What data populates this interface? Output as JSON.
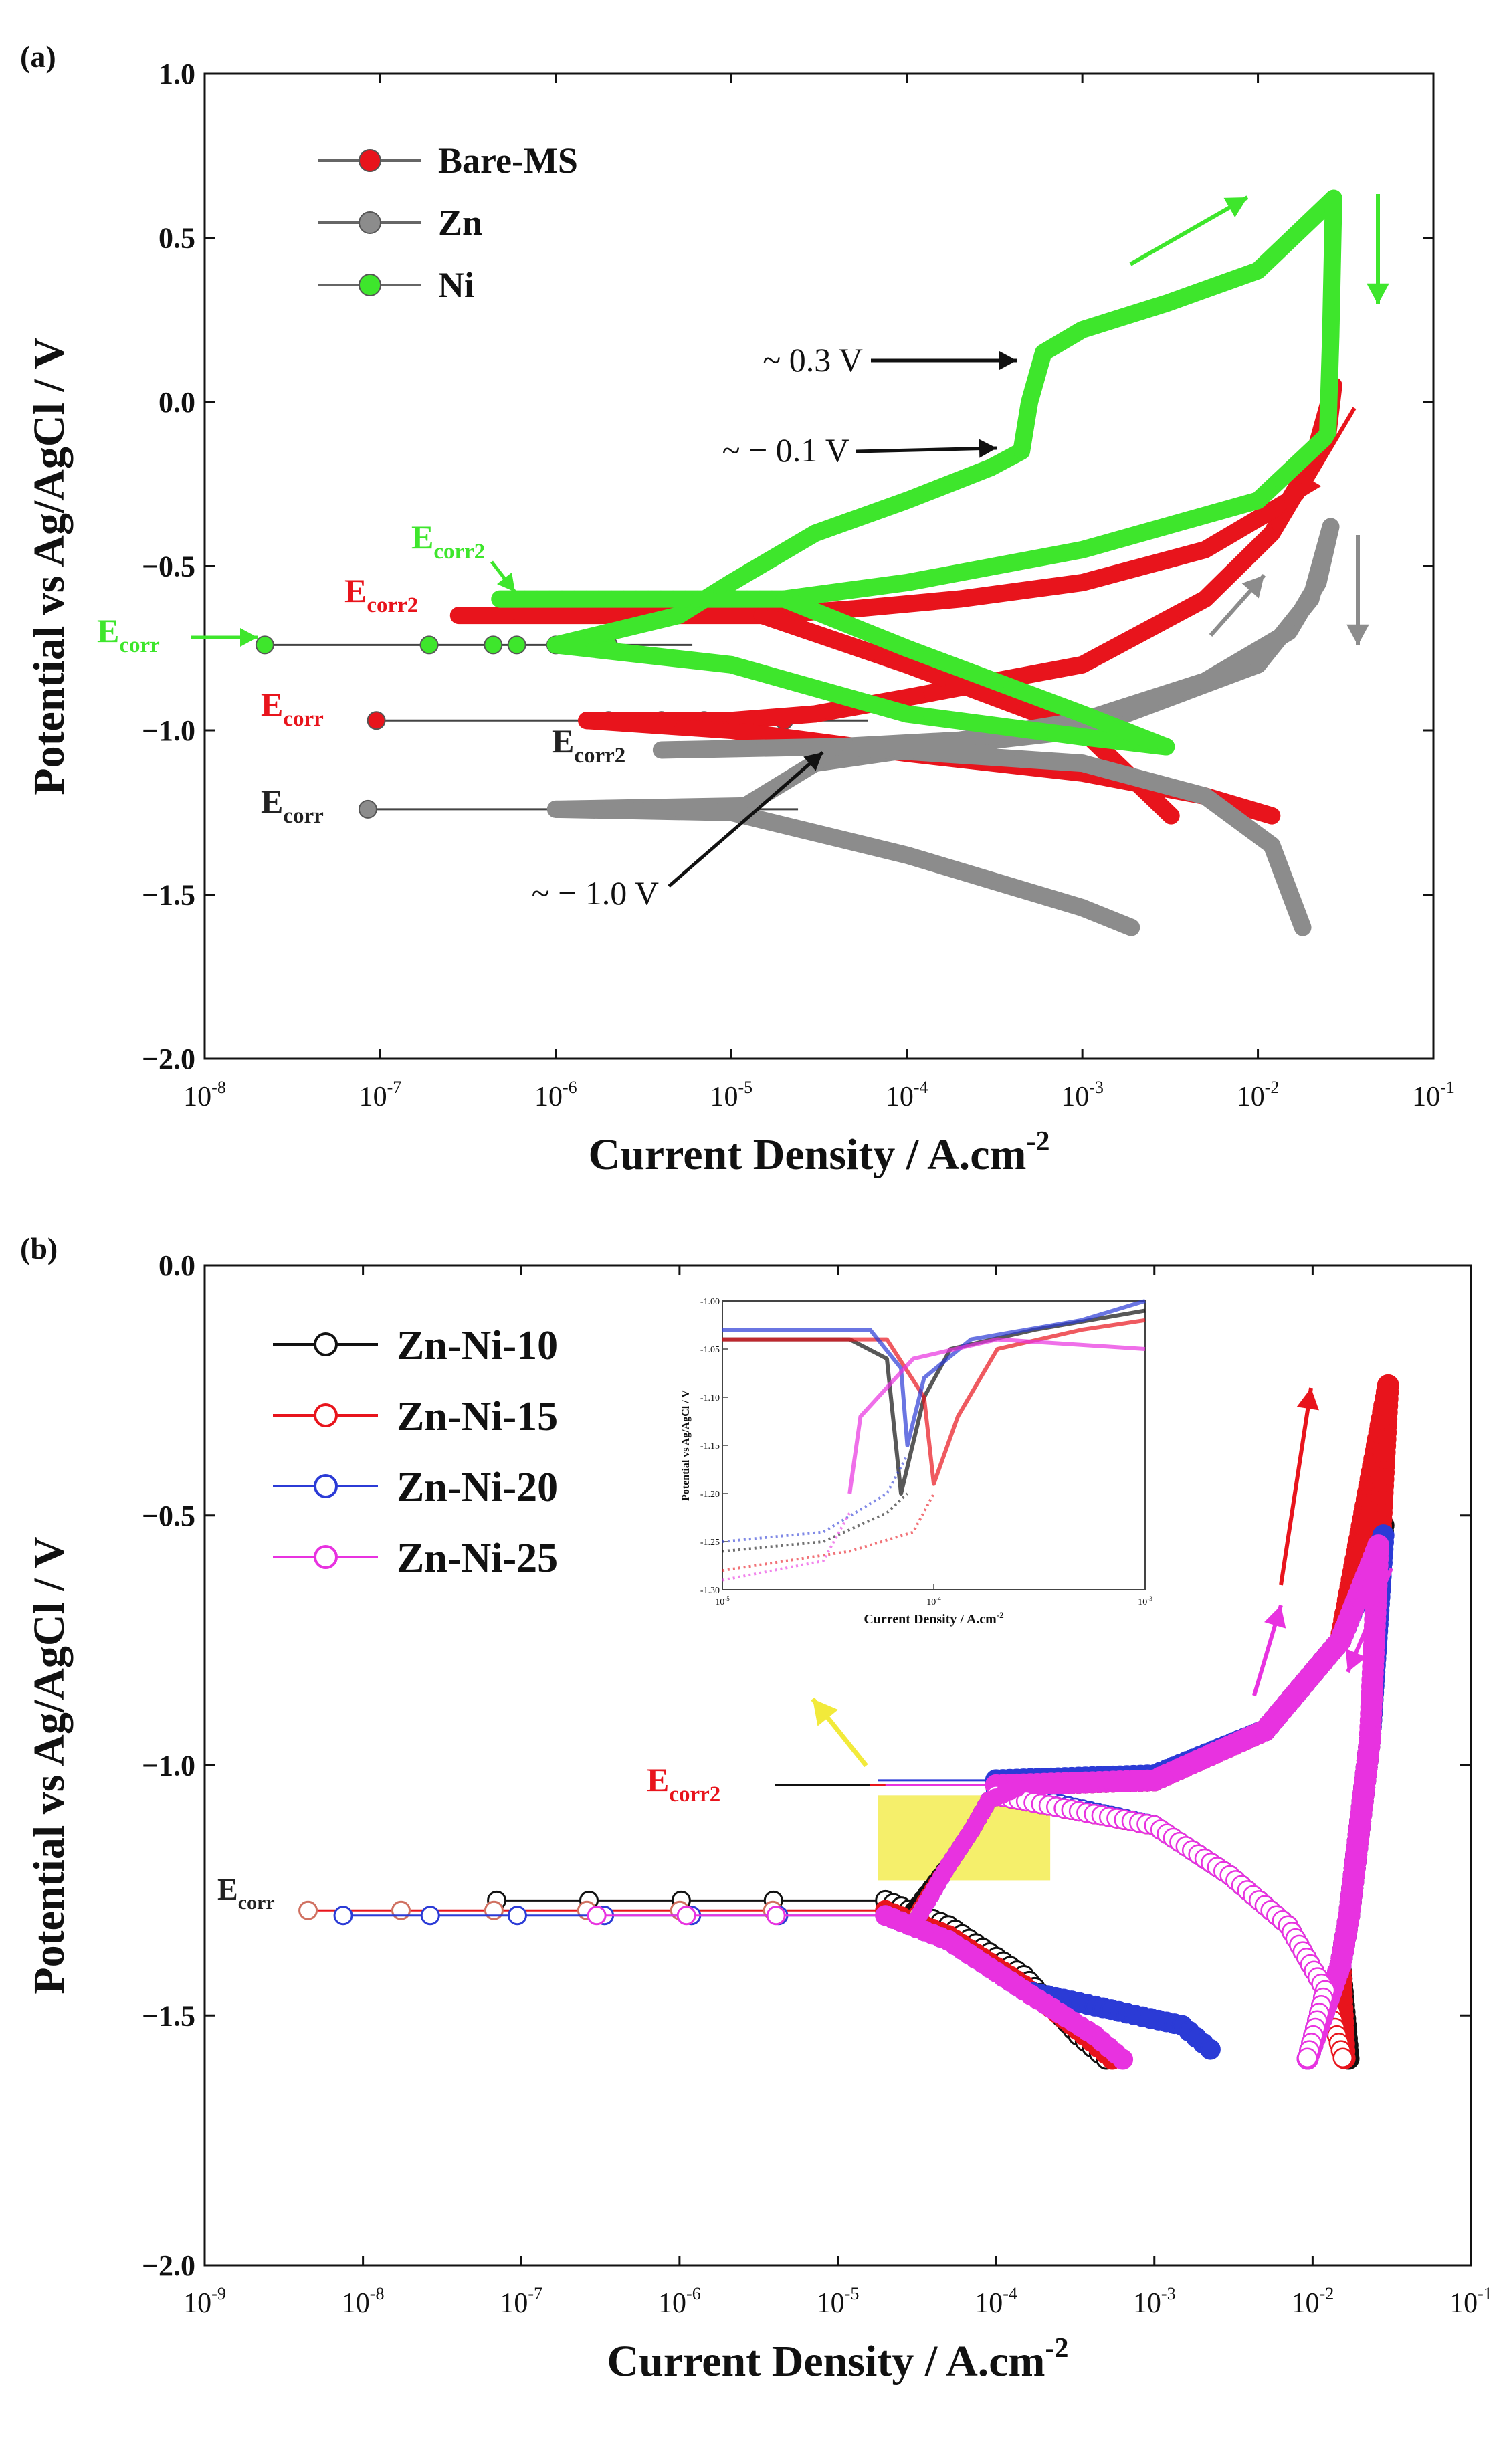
{
  "chart_data": [
    {
      "panel": "(a)",
      "type": "line",
      "xlabel": "Current Density / A.cm",
      "xlabel_sup": "-2",
      "ylabel": "Potential vs Ag/AgCl / V",
      "x_scale": "log",
      "xlim": [
        1e-08,
        0.1
      ],
      "ylim": [
        -2.0,
        1.0
      ],
      "x_tick_exponents": [
        -8,
        -7,
        -6,
        -5,
        -4,
        -3,
        -2,
        -1
      ],
      "y_ticks": [
        1.0,
        0.5,
        0.0,
        -0.5,
        -1.0,
        -1.5,
        -2.0
      ],
      "y_tick_labels": [
        "1.0",
        "0.5",
        "0.0",
        "−0.5",
        "−1.0",
        "−1.5",
        "−2.0"
      ],
      "legend_position": "top-left",
      "series": [
        {
          "name": "Bare-MS",
          "color": "#e8141c",
          "ecorr_line": {
            "E": -0.97,
            "x": [
              9.5e-08,
              2e-06,
              4e-06,
              7e-06,
              1.2e-05,
              2e-05
            ]
          },
          "anodic": [
            [
              1.5e-06,
              -0.97
            ],
            [
              1e-05,
              -0.97
            ],
            [
              3e-05,
              -0.95
            ],
            [
              0.0001,
              -0.9
            ],
            [
              0.001,
              -0.8
            ],
            [
              0.005,
              -0.6
            ],
            [
              0.012,
              -0.4
            ],
            [
              0.02,
              -0.2
            ],
            [
              0.027,
              0.05
            ]
          ],
          "reverse": [
            [
              0.027,
              0.05
            ],
            [
              0.025,
              -0.1
            ],
            [
              0.015,
              -0.3
            ],
            [
              0.005,
              -0.45
            ],
            [
              0.001,
              -0.55
            ],
            [
              0.0002,
              -0.6
            ],
            [
              5e-05,
              -0.63
            ],
            [
              1.5e-05,
              -0.65
            ],
            [
              2.8e-07,
              -0.65
            ]
          ],
          "cathodic": [
            [
              1.5e-06,
              -0.97
            ],
            [
              1e-05,
              -1.0
            ],
            [
              0.0001,
              -1.07
            ],
            [
              0.001,
              -1.13
            ],
            [
              0.005,
              -1.2
            ],
            [
              0.012,
              -1.26
            ]
          ],
          "cathodic2": [
            [
              1.5e-05,
              -0.65
            ],
            [
              0.0001,
              -0.8
            ],
            [
              0.001,
              -1.0
            ],
            [
              0.0032,
              -1.26
            ]
          ]
        },
        {
          "name": "Zn",
          "color": "#8c8c8c",
          "ecorr_line": {
            "E": -1.24,
            "x": [
              8.5e-08,
              2e-06,
              2.4e-06,
              5e-06,
              8e-06
            ]
          },
          "anodic": [
            [
              1e-06,
              -1.24
            ],
            [
              1.2e-05,
              -1.23
            ],
            [
              3e-05,
              -1.1
            ],
            [
              0.0001,
              -1.06
            ],
            [
              0.001,
              -1.0
            ],
            [
              0.01,
              -0.8
            ],
            [
              0.02,
              -0.6
            ],
            [
              0.026,
              -0.38
            ]
          ],
          "reverse": [
            [
              0.026,
              -0.38
            ],
            [
              0.022,
              -0.55
            ],
            [
              0.015,
              -0.7
            ],
            [
              0.005,
              -0.85
            ],
            [
              0.001,
              -0.97
            ],
            [
              0.0002,
              -1.03
            ],
            [
              4e-05,
              -1.05
            ],
            [
              4e-06,
              -1.06
            ]
          ],
          "cathodic": [
            [
              1e-06,
              -1.24
            ],
            [
              1e-05,
              -1.25
            ],
            [
              0.0001,
              -1.38
            ],
            [
              0.001,
              -1.54
            ],
            [
              0.0019,
              -1.6
            ]
          ],
          "cathodic2": [
            [
              4e-05,
              -1.05
            ],
            [
              0.001,
              -1.1
            ],
            [
              0.005,
              -1.2
            ],
            [
              0.012,
              -1.35
            ],
            [
              0.018,
              -1.6
            ]
          ]
        },
        {
          "name": "Ni",
          "color": "#3ee62c",
          "ecorr_line": {
            "E": -0.74,
            "x": [
              2.2e-08,
              1.9e-07,
              4.4e-07,
              6e-07,
              1e-06,
              1.5e-06,
              2e-06
            ]
          },
          "anodic": [
            [
              1e-06,
              -0.74
            ],
            [
              5e-06,
              -0.65
            ],
            [
              1e-05,
              -0.55
            ],
            [
              3e-05,
              -0.4
            ],
            [
              0.0001,
              -0.3
            ],
            [
              0.0003,
              -0.2
            ],
            [
              0.00045,
              -0.15
            ],
            [
              0.0005,
              0.0
            ],
            [
              0.0006,
              0.15
            ],
            [
              0.001,
              0.22
            ],
            [
              0.003,
              0.3
            ],
            [
              0.01,
              0.4
            ],
            [
              0.027,
              0.62
            ]
          ],
          "reverse": [
            [
              0.027,
              0.62
            ],
            [
              0.026,
              0.2
            ],
            [
              0.025,
              -0.1
            ],
            [
              0.01,
              -0.3
            ],
            [
              0.001,
              -0.45
            ],
            [
              0.0001,
              -0.55
            ],
            [
              2e-05,
              -0.6
            ],
            [
              1.5e-06,
              -0.6
            ],
            [
              4.8e-07,
              -0.6
            ]
          ],
          "cathodic": [
            [
              1e-06,
              -0.74
            ],
            [
              1e-05,
              -0.8
            ],
            [
              0.0001,
              -0.95
            ],
            [
              0.001,
              -1.02
            ],
            [
              0.003,
              -1.05
            ]
          ],
          "cathodic2": [
            [
              2e-05,
              -0.6
            ],
            [
              0.0001,
              -0.75
            ],
            [
              0.001,
              -0.95
            ],
            [
              0.003,
              -1.05
            ]
          ]
        }
      ],
      "annotations": [
        {
          "text": "~ 0.3 V",
          "x": 0.00055,
          "y": 0.12
        },
        {
          "text": "~ − 0.1 V",
          "x": 0.0004,
          "y": -0.16
        },
        {
          "text": "~ − 1.0 V",
          "x": 3.5e-05,
          "y": -1.07
        },
        {
          "base": "E",
          "sub": "corr2",
          "color": "#3ee62c"
        },
        {
          "base": "E",
          "sub": "corr2",
          "color": "#e8141c"
        },
        {
          "base": "E",
          "sub": "corr",
          "color": "#3ee62c"
        },
        {
          "base": "E",
          "sub": "corr",
          "color": "#e8141c"
        },
        {
          "base": "E",
          "sub": "corr2",
          "color": "#222222"
        },
        {
          "base": "E",
          "sub": "corr",
          "color": "#222222"
        }
      ]
    },
    {
      "panel": "(b)",
      "type": "line",
      "xlabel": "Current Density / A.cm",
      "xlabel_sup": "-2",
      "ylabel": "Potential vs Ag/AgCl / V",
      "x_scale": "log",
      "xlim": [
        1e-09,
        0.1
      ],
      "ylim": [
        -2.0,
        0.0
      ],
      "x_tick_exponents": [
        -9,
        -8,
        -7,
        -6,
        -5,
        -4,
        -3,
        -2,
        -1
      ],
      "y_ticks": [
        0.0,
        -0.5,
        -1.0,
        -1.5,
        -2.0
      ],
      "y_tick_labels": [
        "0.0",
        "−0.5",
        "−1.0",
        "−1.5",
        "−2.0"
      ],
      "legend_position": "top-left",
      "series": [
        {
          "name": "Zn-Ni-10",
          "color": "#111111",
          "ecorr": -1.27,
          "ecorr2": -1.04,
          "ecorr_x0": 7e-08,
          "ecorr2_x0": 4e-06,
          "cath_end": [
            0.00055,
            -1.6
          ],
          "tip": [
            0.028,
            -0.52
          ],
          "rev_end": [
            0.017,
            -1.6
          ],
          "cath2_end": [
            0.0025,
            -1.6
          ]
        },
        {
          "name": "Zn-Ni-15",
          "color": "#e8141c",
          "ecorr": -1.29,
          "ecorr2": -1.04,
          "ecorr_x0": 4.5e-09,
          "ecorr2_x0": 1.6e-05,
          "cath_end": [
            0.0006,
            -1.6
          ],
          "tip": [
            0.03,
            -0.24
          ],
          "rev_end": [
            0.016,
            -1.6
          ],
          "cath2_end": [
            0.0018,
            -1.6
          ]
        },
        {
          "name": "Zn-Ni-20",
          "color": "#2b3bd6",
          "ecorr": -1.3,
          "ecorr2": -1.03,
          "ecorr_x0": 7.5e-09,
          "ecorr2_x0": 1.8e-05,
          "cath_end": [
            0.0025,
            -1.58
          ],
          "tip": [
            0.028,
            -0.54
          ],
          "rev_end": [
            0.009,
            -1.6
          ],
          "cath2_end": [
            0.002,
            -1.6
          ]
        },
        {
          "name": "Zn-Ni-25",
          "color": "#e832e0",
          "ecorr": -1.3,
          "ecorr2": -1.04,
          "ecorr_x0": 3e-07,
          "ecorr2_x0": 2e-05,
          "cath_end": [
            0.0007,
            -1.6
          ],
          "tip": [
            0.026,
            -0.56
          ],
          "rev_end": [
            0.009,
            -1.6
          ],
          "cath2_end": [
            0.0007,
            -1.6
          ]
        }
      ],
      "annotations": [
        {
          "base": "E",
          "sub": "corr2",
          "color": "#e8141c"
        },
        {
          "base": "E",
          "sub": "corr",
          "color": "#222222"
        }
      ],
      "highlight_box": {
        "x": [
          1.8e-05,
          0.00022
        ],
        "y": [
          -1.06,
          -1.23
        ],
        "color": "#f2ea3a"
      },
      "inset": {
        "xlabel": "Current Density / A.cm",
        "xlabel_sup": "-2",
        "ylabel": "Potential vs Ag/AgCl / V",
        "xlim": [
          1e-05,
          0.001
        ],
        "ylim": [
          -1.3,
          -1.0
        ],
        "x_tick_exponents": [
          -5,
          -4,
          -3
        ],
        "y_tick_labels": [
          "-1.00",
          "-1.05",
          "-1.10",
          "-1.15",
          "-1.20",
          "-1.25",
          "-1.30"
        ]
      }
    }
  ]
}
